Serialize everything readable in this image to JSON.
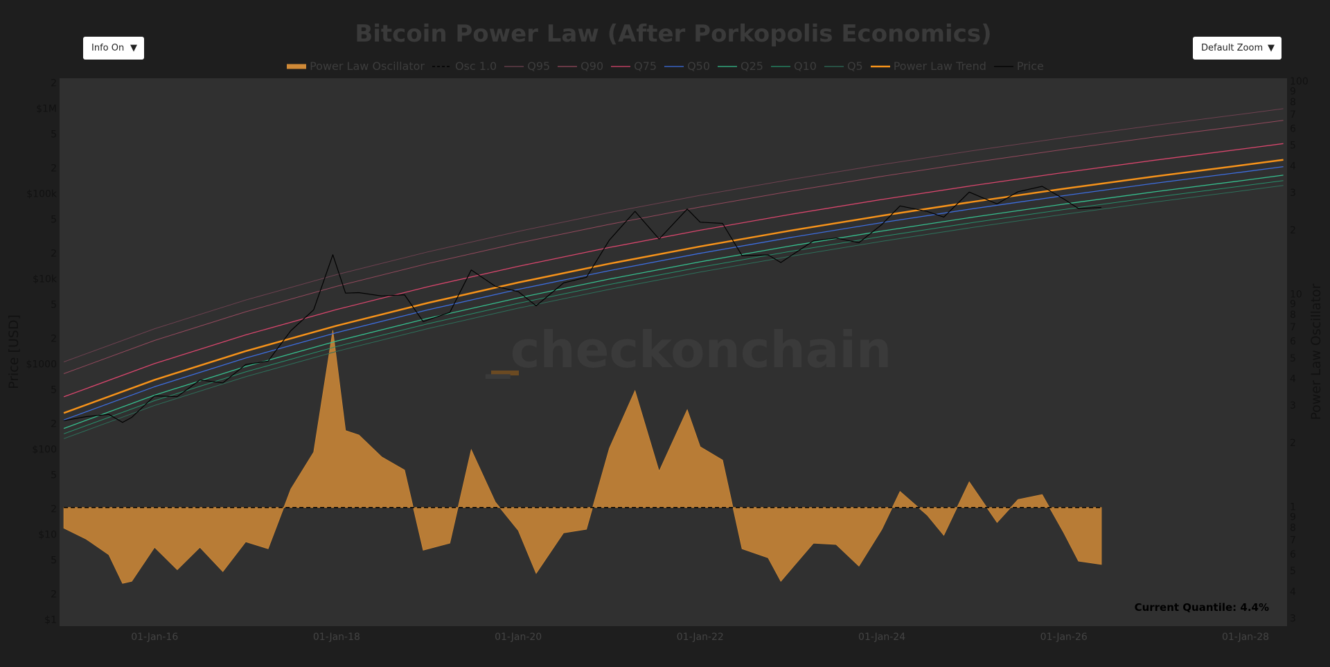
{
  "controls": {
    "info": "Info On",
    "zoom": "Default Zoom",
    "arrow": "▼"
  },
  "chart_data": {
    "type": "line",
    "title": "Bitcoin Power Law (After Porkopolis Economics)",
    "y_label": "Price [USD]",
    "y2_label": "Power Law Oscillator",
    "watermark": "_checkonchain",
    "annotation": "Current Quantile: 4.4%",
    "log_y": true,
    "log_y2": true,
    "xlim": [
      "2014-12-15",
      "2028-06-16"
    ],
    "xticks": [
      {
        "value": "2016-01-01",
        "label": "01-Jan-16"
      },
      {
        "value": "2018-01-01",
        "label": "01-Jan-18"
      },
      {
        "value": "2020-01-01",
        "label": "01-Jan-20"
      },
      {
        "value": "2022-01-01",
        "label": "01-Jan-22"
      },
      {
        "value": "2024-01-01",
        "label": "01-Jan-24"
      },
      {
        "value": "2026-01-01",
        "label": "01-Jan-26"
      },
      {
        "value": "2028-01-01",
        "label": "01-Jan-28"
      }
    ],
    "ylim": [
      0.85,
      2300000
    ],
    "yticks": [
      {
        "value": 1,
        "label": "$1"
      },
      2,
      5,
      {
        "value": 10,
        "label": "$10"
      },
      {
        "value": 20,
        "label": "2"
      },
      {
        "value": 50,
        "label": "5"
      },
      {
        "value": 100,
        "label": "$100"
      },
      {
        "value": 200,
        "label": "2"
      },
      {
        "value": 500,
        "label": "5"
      },
      {
        "value": 1000,
        "label": "$1000"
      },
      {
        "value": 2000,
        "label": "2"
      },
      {
        "value": 5000,
        "label": "5"
      },
      {
        "value": 10000,
        "label": "$10k"
      },
      {
        "value": 20000,
        "label": "2"
      },
      {
        "value": 50000,
        "label": "5"
      },
      {
        "value": 100000,
        "label": "$100k"
      },
      {
        "value": 200000,
        "label": "2"
      },
      {
        "value": 500000,
        "label": "5"
      },
      {
        "value": 1000000,
        "label": "$1M"
      },
      {
        "value": 2000000,
        "label": "2"
      }
    ],
    "y2lim": [
      0.277,
      104
    ],
    "y2ticks": [
      {
        "value": 0.3,
        "label": "3"
      },
      {
        "value": 0.4,
        "label": "4"
      },
      {
        "value": 0.5,
        "label": "5"
      },
      {
        "value": 0.6,
        "label": "6"
      },
      {
        "value": 0.7,
        "label": "7"
      },
      {
        "value": 0.8,
        "label": "8"
      },
      {
        "value": 0.9,
        "label": "9"
      },
      1,
      2,
      3,
      4,
      5,
      6,
      7,
      8,
      9,
      10,
      {
        "value": 20,
        "label": "2"
      },
      {
        "value": 30,
        "label": "3"
      },
      {
        "value": 40,
        "label": "4"
      },
      {
        "value": 50,
        "label": "5"
      },
      {
        "value": 60,
        "label": "6"
      },
      {
        "value": 70,
        "label": "7"
      },
      {
        "value": 80,
        "label": "8"
      },
      {
        "value": 90,
        "label": "9"
      },
      100
    ],
    "series": [
      {
        "name": "Power Law Oscillator",
        "kind": "area",
        "axis": "y2",
        "color": "#d08a37",
        "x": [
          "2015-01-01",
          "2015-04-01",
          "2015-07-01",
          "2015-08-25",
          "2015-10-01",
          "2016-01-01",
          "2016-04-01",
          "2016-07-01",
          "2016-10-01",
          "2017-01-01",
          "2017-04-01",
          "2017-07-01",
          "2017-10-01",
          "2017-12-17",
          "2018-02-06",
          "2018-04-01",
          "2018-07-01",
          "2018-10-01",
          "2018-12-15",
          "2019-04-01",
          "2019-06-26",
          "2019-10-01",
          "2020-01-01",
          "2020-03-13",
          "2020-07-01",
          "2020-10-01",
          "2021-01-01",
          "2021-04-14",
          "2021-07-20",
          "2021-11-10",
          "2022-01-01",
          "2022-04-01",
          "2022-06-18",
          "2022-10-01",
          "2022-11-21",
          "2023-04-01",
          "2023-07-01",
          "2023-10-01",
          "2024-01-01",
          "2024-03-14",
          "2024-07-01",
          "2024-09-06",
          "2024-12-17",
          "2025-04-08",
          "2025-07-01",
          "2025-10-06",
          "2026-01-01",
          "2026-03-01",
          "2026-06-01"
        ],
        "values": [
          0.8,
          0.71,
          0.6,
          0.44,
          0.45,
          0.65,
          0.51,
          0.65,
          0.5,
          0.69,
          0.64,
          1.22,
          1.82,
          6.8,
          2.3,
          2.19,
          1.73,
          1.5,
          0.63,
          0.68,
          1.87,
          1.06,
          0.78,
          0.49,
          0.76,
          0.79,
          1.9,
          3.54,
          1.48,
          2.88,
          1.93,
          1.67,
          0.64,
          0.58,
          0.45,
          0.68,
          0.67,
          0.53,
          0.79,
          1.19,
          0.92,
          0.74,
          1.32,
          0.85,
          1.09,
          1.15,
          0.76,
          0.56,
          0.54
        ]
      },
      {
        "name": "Osc 1.0",
        "kind": "line",
        "dash": true,
        "axis": "y2",
        "color": "#000000",
        "width": 1.5,
        "x": [
          "2015-01-01",
          "2026-06-01"
        ],
        "values": [
          1,
          1
        ]
      },
      {
        "name": "Q95",
        "kind": "line",
        "color": "#6e4150",
        "width": 1,
        "x": [
          "2015-01-01",
          "2016-01-01",
          "2017-01-01",
          "2018-01-01",
          "2019-01-01",
          "2020-01-01",
          "2021-01-01",
          "2022-01-01",
          "2023-01-01",
          "2024-01-01",
          "2025-01-01",
          "2026-01-01",
          "2027-01-01",
          "2028-01-01",
          "2028-06-01"
        ],
        "values": [
          1075,
          2640,
          5730,
          11380,
          21010,
          36620,
          60900,
          97100,
          149300,
          222900,
          324800,
          461700,
          644800,
          883600,
          1011000
        ]
      },
      {
        "name": "Q90",
        "kind": "line",
        "color": "#94495d",
        "width": 1,
        "x": [
          "2015-01-01",
          "2016-01-01",
          "2017-01-01",
          "2018-01-01",
          "2019-01-01",
          "2020-01-01",
          "2021-01-01",
          "2022-01-01",
          "2023-01-01",
          "2024-01-01",
          "2025-01-01",
          "2026-01-01",
          "2027-01-01",
          "2028-01-01",
          "2028-06-01"
        ],
        "values": [
          783,
          1923,
          4176,
          8294,
          15310,
          26680,
          44370,
          70760,
          108750,
          162400,
          236600,
          336400,
          469800,
          643800,
          736600
        ]
      },
      {
        "name": "Q75",
        "kind": "line",
        "color": "#d9466d",
        "width": 1.3,
        "x": [
          "2015-01-01",
          "2016-01-01",
          "2017-01-01",
          "2018-01-01",
          "2019-01-01",
          "2020-01-01",
          "2021-01-01",
          "2022-01-01",
          "2023-01-01",
          "2024-01-01",
          "2025-01-01",
          "2026-01-01",
          "2027-01-01",
          "2028-01-01",
          "2028-06-01"
        ],
        "values": [
          419,
          1028,
          2232,
          4433,
          8184,
          14260,
          23720,
          37820,
          58130,
          86800,
          126500,
          179800,
          251100,
          344100,
          393700
        ]
      },
      {
        "name": "Q50",
        "kind": "line",
        "color": "#3d6ee0",
        "width": 1.3,
        "x": [
          "2015-01-01",
          "2016-01-01",
          "2017-01-01",
          "2018-01-01",
          "2019-01-01",
          "2020-01-01",
          "2021-01-01",
          "2022-01-01",
          "2023-01-01",
          "2024-01-01",
          "2025-01-01",
          "2026-01-01",
          "2027-01-01",
          "2028-01-01",
          "2028-06-01"
        ],
        "values": [
          224,
          550,
          1195,
          2374,
          4382,
          7636,
          12700,
          20250,
          31130,
          46480,
          67730,
          96280,
          134500,
          184300,
          210800
        ]
      },
      {
        "name": "Q25",
        "kind": "line",
        "color": "#36c08f",
        "width": 1.3,
        "x": [
          "2015-01-01",
          "2016-01-01",
          "2017-01-01",
          "2018-01-01",
          "2019-01-01",
          "2020-01-01",
          "2021-01-01",
          "2022-01-01",
          "2023-01-01",
          "2024-01-01",
          "2025-01-01",
          "2026-01-01",
          "2027-01-01",
          "2028-01-01",
          "2028-06-01"
        ],
        "values": [
          178,
          438,
          950,
          1888,
          3485,
          6072,
          10100,
          16100,
          24750,
          36960,
          53860,
          76560,
          106900,
          146500,
          167600
        ]
      },
      {
        "name": "Q10",
        "kind": "line",
        "color": "#26916c",
        "width": 1,
        "x": [
          "2015-01-01",
          "2016-01-01",
          "2017-01-01",
          "2018-01-01",
          "2019-01-01",
          "2020-01-01",
          "2021-01-01",
          "2022-01-01",
          "2023-01-01",
          "2024-01-01",
          "2025-01-01",
          "2026-01-01",
          "2027-01-01",
          "2028-01-01",
          "2028-06-01"
        ],
        "values": [
          154,
          378,
          821,
          1630,
          3010,
          5244,
          8721,
          13910,
          21380,
          31920,
          46510,
          66120,
          92340,
          126500,
          144800
        ]
      },
      {
        "name": "Q5",
        "kind": "line",
        "color": "#2d6f5a",
        "width": 1,
        "x": [
          "2015-01-01",
          "2016-01-01",
          "2017-01-01",
          "2018-01-01",
          "2019-01-01",
          "2020-01-01",
          "2021-01-01",
          "2022-01-01",
          "2023-01-01",
          "2024-01-01",
          "2025-01-01",
          "2026-01-01",
          "2027-01-01",
          "2028-01-01",
          "2028-06-01"
        ],
        "values": [
          135,
          332,
          720,
          1430,
          2640,
          4600,
          7650,
          12200,
          18750,
          28000,
          40800,
          58000,
          81000,
          111000,
          127000
        ]
      },
      {
        "name": "Power Law Trend",
        "kind": "line",
        "color": "#f7931a",
        "width": 2.5,
        "x": [
          "2015-01-01",
          "2016-01-01",
          "2017-01-01",
          "2018-01-01",
          "2019-01-01",
          "2020-01-01",
          "2021-01-01",
          "2022-01-01",
          "2023-01-01",
          "2024-01-01",
          "2025-01-01",
          "2026-01-01",
          "2027-01-01",
          "2028-01-01",
          "2028-06-01"
        ],
        "values": [
          270,
          663,
          1440,
          2860,
          5280,
          9200,
          15300,
          24400,
          37500,
          56000,
          81600,
          116000,
          162000,
          222000,
          254000
        ]
      },
      {
        "name": "Price",
        "kind": "line",
        "color": "#000000",
        "width": 1.2,
        "x": [
          "2015-01-01",
          "2015-04-01",
          "2015-07-01",
          "2015-08-25",
          "2015-10-01",
          "2016-01-01",
          "2016-04-01",
          "2016-07-01",
          "2016-10-01",
          "2017-01-01",
          "2017-04-01",
          "2017-07-01",
          "2017-10-01",
          "2017-12-17",
          "2018-02-06",
          "2018-04-01",
          "2018-07-01",
          "2018-10-01",
          "2018-12-15",
          "2019-04-01",
          "2019-06-26",
          "2019-10-01",
          "2020-01-01",
          "2020-03-13",
          "2020-07-01",
          "2020-10-01",
          "2021-01-01",
          "2021-04-14",
          "2021-07-20",
          "2021-11-10",
          "2022-01-01",
          "2022-04-01",
          "2022-06-18",
          "2022-10-01",
          "2022-11-21",
          "2023-04-01",
          "2023-07-01",
          "2023-10-01",
          "2024-01-01",
          "2024-03-14",
          "2024-07-01",
          "2024-09-06",
          "2024-12-17",
          "2025-04-08",
          "2025-07-01",
          "2025-10-06",
          "2026-01-01",
          "2026-03-01",
          "2026-06-01"
        ],
        "values": [
          220,
          245,
          260,
          210,
          240,
          430,
          420,
          660,
          610,
          1000,
          1100,
          2500,
          4400,
          19500,
          6900,
          7000,
          6400,
          6600,
          3200,
          4100,
          12900,
          8300,
          7200,
          4900,
          9100,
          10600,
          29000,
          63000,
          29800,
          67000,
          47000,
          45500,
          19000,
          19400,
          15800,
          28400,
          30600,
          27000,
          44200,
          73000,
          62800,
          54000,
          106000,
          77000,
          107000,
          124000,
          88000,
          68000,
          70000
        ]
      }
    ]
  }
}
